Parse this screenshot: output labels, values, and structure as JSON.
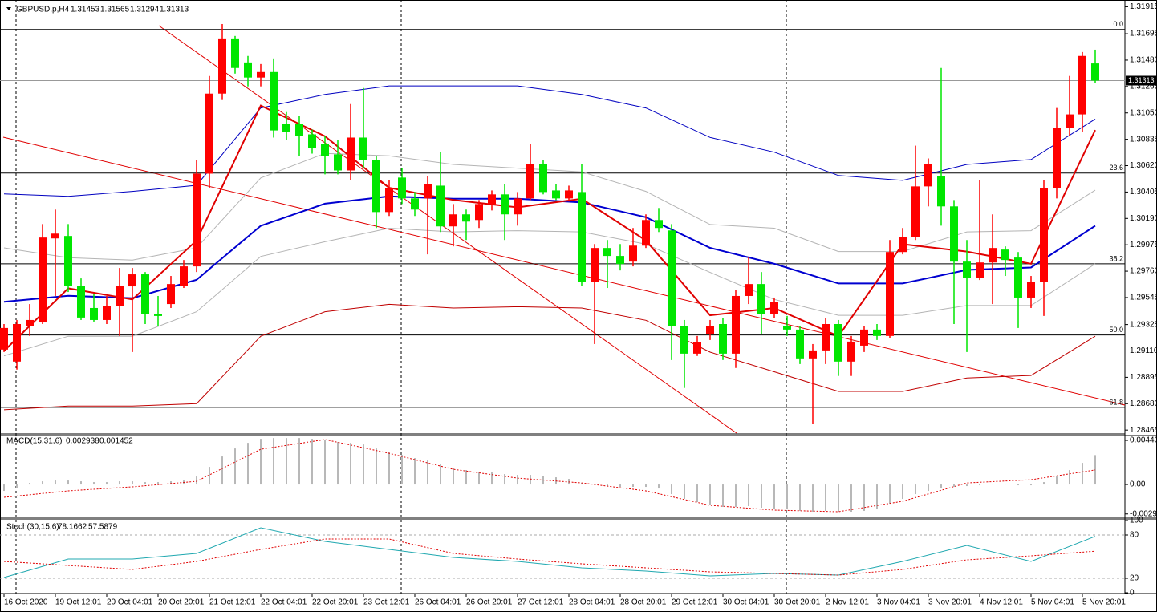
{
  "chart_data": [
    {
      "type": "candlestick",
      "symbol": "GBPUSD,p,H4",
      "categories": [
        "16 Oct 2020",
        null,
        null,
        null,
        "19 Oct 12:01",
        null,
        null,
        null,
        "20 Oct 04:01",
        null,
        null,
        null,
        "20 Oct 20:01",
        null,
        null,
        null,
        "21 Oct 12:01",
        null,
        null,
        null,
        "22 Oct 04:01",
        null,
        null,
        null,
        "22 Oct 20:01",
        null,
        null,
        null,
        "23 Oct 12:01",
        null,
        null,
        null,
        "26 Oct 04:01",
        null,
        null,
        null,
        "26 Oct 20:01",
        null,
        null,
        null,
        "27 Oct 12:01",
        null,
        null,
        null,
        "28 Oct 04:01",
        null,
        null,
        null,
        "28 Oct 20:01",
        null,
        null,
        null,
        "29 Oct 12:01",
        null,
        null,
        null,
        "30 Oct 04:01",
        null,
        null,
        null,
        "30 Oct 20:01",
        null,
        null,
        null,
        "2 Nov 12:01",
        null,
        null,
        null,
        "3 Nov 04:01",
        null,
        null,
        null,
        "3 Nov 20:01",
        null,
        null,
        null,
        "4 Nov 12:01",
        null,
        null,
        null,
        "5 Nov 04:01",
        null,
        null,
        null,
        "5 Nov 20:01",
        null
      ],
      "open": [
        1.29121,
        1.29023,
        1.2931,
        1.29342,
        1.30027,
        1.30047,
        1.29642,
        1.2946,
        1.29362,
        1.29473,
        1.29636,
        1.29734,
        1.29408,
        1.29492,
        1.29642,
        1.29799,
        1.30555,
        1.31207,
        1.31657,
        1.31461,
        1.31338,
        1.31383,
        1.30959,
        1.30959,
        1.30875,
        1.30796,
        1.30712,
        1.30581,
        1.30849,
        1.30666,
        1.30242,
        1.30523,
        1.30353,
        1.30353,
        1.30457,
        1.30125,
        1.30223,
        1.30177,
        1.30307,
        1.30386,
        1.30223,
        1.30353,
        1.30633,
        1.30418,
        1.30353,
        1.30405,
        1.29675,
        1.29949,
        1.29884,
        1.29838,
        1.29968,
        1.30177,
        1.30092,
        1.2931,
        1.29088,
        1.29245,
        1.29329,
        1.29088,
        1.29558,
        1.29655,
        1.29408,
        1.29316,
        1.29284,
        1.29049,
        1.29114,
        1.29329,
        1.29023,
        1.29153,
        1.29284,
        1.29232,
        1.29916,
        1.3004,
        1.30451,
        1.30536,
        1.30288,
        1.29838,
        1.29708,
        1.29831,
        1.29936,
        1.29871,
        1.29545,
        1.29675,
        1.30438,
        1.30927,
        1.31038,
        1.31453
      ],
      "high": [
        1.29329,
        1.29362,
        1.29492,
        1.30144,
        1.30262,
        1.30144,
        1.29701,
        1.29571,
        1.29558,
        1.29786,
        1.29786,
        1.29753,
        1.29558,
        1.29721,
        1.29851,
        1.30666,
        1.31351,
        1.31774,
        1.31677,
        1.31514,
        1.31448,
        1.31494,
        1.31057,
        1.31025,
        1.30914,
        1.30862,
        1.30829,
        1.31122,
        1.31253,
        1.30699,
        1.30503,
        1.30601,
        1.30405,
        1.30536,
        1.30731,
        1.30307,
        1.30262,
        1.3034,
        1.30418,
        1.3047,
        1.30405,
        1.30796,
        1.30666,
        1.3047,
        1.30457,
        1.30633,
        1.29981,
        1.30014,
        1.29981,
        1.30112,
        1.30223,
        1.30275,
        1.30144,
        1.29362,
        1.29232,
        1.29362,
        1.29375,
        1.2961,
        1.29871,
        1.29753,
        1.29545,
        1.29395,
        1.2931,
        1.29166,
        1.29375,
        1.29362,
        1.29232,
        1.2931,
        1.29329,
        1.30014,
        1.30112,
        1.30783,
        1.30679,
        1.31416,
        1.3034,
        1.30014,
        1.30503,
        1.30223,
        1.29962,
        1.29916,
        1.29721,
        1.30503,
        1.3109,
        1.31351,
        1.31546,
        1.31565
      ],
      "low": [
        1.29101,
        1.28958,
        1.29232,
        1.29329,
        1.29558,
        1.2959,
        1.29362,
        1.29349,
        1.29329,
        1.29232,
        1.29101,
        1.29329,
        1.2931,
        1.2946,
        1.29623,
        1.29753,
        1.30438,
        1.31155,
        1.3137,
        1.31266,
        1.31266,
        1.30849,
        1.30829,
        1.30699,
        1.30718,
        1.30549,
        1.30549,
        1.30503,
        1.30601,
        1.30112,
        1.3021,
        1.30307,
        1.3021,
        1.29897,
        1.30079,
        1.29962,
        1.30014,
        1.30112,
        1.30255,
        1.30014,
        1.30131,
        1.3034,
        1.30386,
        1.3034,
        1.30327,
        1.29636,
        1.29166,
        1.29623,
        1.29766,
        1.29799,
        1.29949,
        1.30079,
        1.29036,
        1.28808,
        1.29069,
        1.29199,
        1.29036,
        1.28971,
        1.29492,
        1.29245,
        1.29375,
        1.29232,
        1.29003,
        1.28514,
        1.29003,
        1.28906,
        1.28906,
        1.29101,
        1.29199,
        1.29212,
        1.29897,
        1.30014,
        1.30288,
        1.30131,
        1.29329,
        1.29101,
        1.29688,
        1.29492,
        1.29721,
        1.29297,
        1.2946,
        1.29395,
        1.30353,
        1.30862,
        1.30894,
        1.31294
      ],
      "close": [
        1.29297,
        1.29329,
        1.29362,
        1.30034,
        1.30066,
        1.29642,
        1.29382,
        1.29362,
        1.29473,
        1.29642,
        1.29734,
        1.29408,
        1.29395,
        1.29655,
        1.29799,
        1.30555,
        1.31207,
        1.31657,
        1.31416,
        1.31338,
        1.31383,
        1.30907,
        1.30894,
        1.30862,
        1.30764,
        1.30699,
        1.30581,
        1.30849,
        1.30666,
        1.30242,
        1.30438,
        1.30353,
        1.30262,
        1.3047,
        1.30125,
        1.30223,
        1.30164,
        1.30307,
        1.30386,
        1.30223,
        1.30353,
        1.30633,
        1.30405,
        1.30353,
        1.30418,
        1.29675,
        1.29949,
        1.29884,
        1.29818,
        1.29968,
        1.30177,
        1.30112,
        1.2931,
        1.29088,
        1.29179,
        1.2931,
        1.29088,
        1.29558,
        1.29655,
        1.29408,
        1.29512,
        1.29284,
        1.29049,
        1.29114,
        1.29329,
        1.29023,
        1.29186,
        1.29284,
        1.29232,
        1.29916,
        1.3004,
        1.30451,
        1.30633,
        1.30288,
        1.29838,
        1.29708,
        1.29831,
        1.29949,
        1.29851,
        1.29545,
        1.29675,
        1.30438,
        1.30927,
        1.31038,
        1.31514,
        1.31313
      ],
      "up_color": "#ff0000",
      "down_color": "#00e600",
      "ylim": [
        1.2844,
        1.3197
      ],
      "yticks": [
        1.31915,
        1.31695,
        {
          "value": 1.3148,
          "label": "1.31480"
        },
        1.31265,
        {
          "value": 1.3105,
          "label": "1.31050"
        },
        1.30835,
        {
          "value": 1.3062,
          "label": "1.30620"
        },
        1.30405,
        {
          "value": 1.3019,
          "label": "1.30190"
        },
        1.29975,
        {
          "value": 1.2976,
          "label": "1.29760"
        },
        1.29545,
        1.29325,
        {
          "value": 1.2911,
          "label": "1.29110"
        },
        1.28895,
        {
          "value": 1.2868,
          "label": "1.28680"
        },
        1.28465
      ],
      "levels": [
        {
          "label": "0.0",
          "value": 1.3173
        },
        {
          "label": "23.6",
          "value": 1.3056
        },
        {
          "label": "38.2",
          "value": 1.2982
        },
        {
          "label": "50.0",
          "value": 1.2924
        },
        {
          "label": "61.8",
          "value": 1.2865
        }
      ],
      "overlay_x": [
        0,
        5,
        10,
        15,
        20,
        25,
        30,
        35,
        40,
        45,
        50,
        55,
        60,
        65,
        70,
        75,
        80,
        85
      ],
      "overlays": [
        {
          "color": "#b4b4b4",
          "width": 1,
          "values": [
            1.2995,
            1.2987,
            1.2985,
            1.2995,
            1.3052,
            1.3072,
            1.307,
            1.3063,
            1.306,
            1.3057,
            1.3041,
            1.3014,
            1.3011,
            1.2992,
            1.2992,
            1.3008,
            1.3009,
            1.3042
          ]
        },
        {
          "color": "#b4b4b4",
          "width": 1,
          "values": [
            1.2907,
            1.2923,
            1.2923,
            1.2943,
            1.2988,
            1.3,
            1.3011,
            1.3008,
            1.3009,
            1.3008,
            1.2998,
            1.2975,
            1.2953,
            1.294,
            1.294,
            1.2948,
            1.2948,
            1.2982
          ]
        },
        {
          "color": "#0000c0",
          "width": 1,
          "values": [
            1.3039,
            1.3037,
            1.3041,
            1.3046,
            1.3109,
            1.312,
            1.3127,
            1.3127,
            1.3127,
            1.312,
            1.3109,
            1.3085,
            1.3073,
            1.3054,
            1.305,
            1.3063,
            1.3067,
            1.31
          ]
        },
        {
          "color": "#c00000",
          "width": 1,
          "values": [
            1.2863,
            1.2866,
            1.2866,
            1.2868,
            1.2923,
            1.2943,
            1.2949,
            1.2946,
            1.2947,
            1.2946,
            1.2936,
            1.291,
            1.2894,
            1.2878,
            1.2878,
            1.2889,
            1.2891,
            1.2923
          ]
        },
        {
          "color": "#0000d0",
          "width": 2,
          "values": [
            1.2951,
            1.2956,
            1.2954,
            1.2969,
            1.3013,
            1.3031,
            1.3037,
            1.3035,
            1.3035,
            1.3032,
            1.302,
            1.2995,
            1.2982,
            1.2966,
            1.2966,
            1.2977,
            1.2979,
            1.3013
          ]
        },
        {
          "color": "#e00000",
          "width": 2,
          "values": [
            1.2911,
            1.2962,
            1.2953,
            1.3001,
            1.3111,
            1.3086,
            1.3044,
            1.3034,
            1.3028,
            1.3035,
            1.3001,
            1.294,
            1.2946,
            1.2923,
            1.2998,
            1.2992,
            1.2982,
            1.3091
          ]
        }
      ]
    },
    {
      "type": "macd",
      "title": "MACD(15,31,6)",
      "color": "#b8b8b8",
      "signal_color": "#e00000",
      "values": [
        -0.00064,
        -0.00032,
        0.00016,
        0.00032,
        0.0004,
        0.0004,
        0.00032,
        0.00024,
        0.00024,
        0.00032,
        0.00032,
        0.00024,
        0.00024,
        0.00032,
        0.0004,
        0.0008,
        0.00176,
        0.0028,
        0.0036,
        0.00416,
        0.00456,
        0.00464,
        0.00464,
        0.00464,
        0.00456,
        0.00448,
        0.00424,
        0.00416,
        0.004,
        0.0036,
        0.0032,
        0.00296,
        0.00264,
        0.0024,
        0.002,
        0.00168,
        0.00144,
        0.00128,
        0.0012,
        0.00104,
        0.00096,
        0.00096,
        0.00088,
        0.00072,
        0.00056,
        0.00016,
        0,
        -0.00016,
        -0.00024,
        -0.00024,
        -0.00024,
        -0.0004,
        -0.00096,
        -0.00144,
        -0.00176,
        -0.002,
        -0.00224,
        -0.00224,
        -0.00216,
        -0.00232,
        -0.0024,
        -0.00248,
        -0.00264,
        -0.00272,
        -0.00264,
        -0.00272,
        -0.00272,
        -0.00264,
        -0.00248,
        -0.00192,
        -0.00144,
        -0.00096,
        -0.00064,
        -0.0004,
        -0.00024,
        -0.00016,
        -8e-05,
        8e-05,
        8e-05,
        -8e-05,
        -8e-05,
        0.00024,
        0.0008,
        0.00144,
        0.00216,
        0.002938
      ],
      "signal_x": [
        0,
        5,
        10,
        15,
        20,
        25,
        30,
        35,
        40,
        45,
        50,
        55,
        60,
        65,
        70,
        75,
        80,
        85
      ],
      "signal": [
        -0.00128,
        -0.00064,
        -0.00024,
        0.00032,
        0.00352,
        0.00449,
        0.00312,
        0.00152,
        0.00064,
        0.00016,
        -0.00064,
        -0.00208,
        -0.00256,
        -0.00272,
        -0.00168,
        0.00016,
        0.00048,
        0.001452
      ],
      "ylim": [
        -0.00328,
        0.00489
      ],
      "yticks": [
        0.004407,
        {
          "value": 0,
          "label": "0.00"
        },
        -0.00294
      ]
    },
    {
      "type": "line",
      "title": "Stoch(30,15,6)",
      "x": [
        0,
        5,
        10,
        15,
        20,
        25,
        30,
        35,
        40,
        45,
        50,
        55,
        60,
        65,
        70,
        75,
        80,
        85
      ],
      "series": [
        {
          "color": "#20a8b0",
          "dashed": false,
          "values": [
            21.1,
            46.7,
            46.7,
            54.4,
            90,
            71.1,
            60,
            48.9,
            43.3,
            34.4,
            30,
            23.3,
            26.7,
            24.4,
            43.3,
            65.6,
            43.3,
            78.1662
          ]
        },
        {
          "color": "#e00000",
          "dashed": true,
          "values": [
            43.3,
            37.8,
            32.2,
            43.3,
            60,
            74.4,
            74.4,
            54.4,
            46.7,
            40,
            34.4,
            28.9,
            26.7,
            24.4,
            32.2,
            45.6,
            51.1,
            57.5879
          ]
        }
      ],
      "ylim": [
        0,
        100
      ],
      "yticks": [
        0,
        20,
        80,
        100
      ],
      "levels": [
        20,
        80
      ]
    }
  ]
}
